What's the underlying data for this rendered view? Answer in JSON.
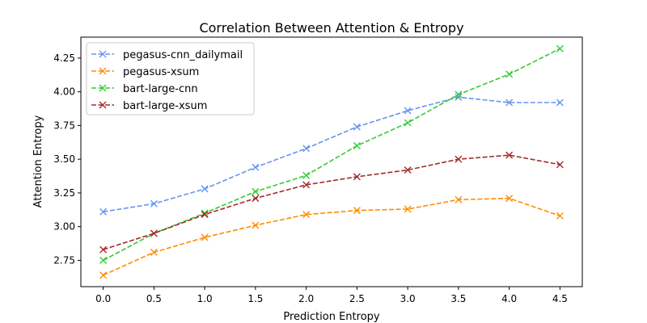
{
  "chart_data": {
    "type": "line",
    "title": "Correlation Between Attention & Entropy",
    "xlabel": "Prediction Entropy",
    "ylabel": "Attention Entropy",
    "x": [
      0.0,
      0.5,
      1.0,
      1.5,
      2.0,
      2.5,
      3.0,
      3.5,
      4.0,
      4.5
    ],
    "xlim": [
      -0.22,
      4.72
    ],
    "ylim": [
      2.555,
      4.405
    ],
    "xticks": [
      0.0,
      0.5,
      1.0,
      1.5,
      2.0,
      2.5,
      3.0,
      3.5,
      4.0,
      4.5
    ],
    "xtick_labels": [
      "0.0",
      "0.5",
      "1.0",
      "1.5",
      "2.0",
      "2.5",
      "3.0",
      "3.5",
      "4.0",
      "4.5"
    ],
    "yticks": [
      2.75,
      3.0,
      3.25,
      3.5,
      3.75,
      4.0,
      4.25
    ],
    "ytick_labels": [
      "2.75",
      "3.00",
      "3.25",
      "3.50",
      "3.75",
      "4.00",
      "4.25"
    ],
    "grid": false,
    "legend_position": "top-left",
    "series": [
      {
        "name": "pegasus-cnn_dailymail",
        "color": "#6495ED",
        "marker": "x",
        "linestyle": "dashed",
        "values": [
          3.11,
          3.17,
          3.28,
          3.44,
          3.58,
          3.74,
          3.86,
          3.96,
          3.92,
          3.92
        ]
      },
      {
        "name": "pegasus-xsum",
        "color": "#FF8C00",
        "marker": "x",
        "linestyle": "dashed",
        "values": [
          2.64,
          2.81,
          2.92,
          3.01,
          3.09,
          3.12,
          3.13,
          3.2,
          3.21,
          3.08
        ]
      },
      {
        "name": "bart-large-cnn",
        "color": "#32CD32",
        "marker": "x",
        "linestyle": "dashed",
        "values": [
          2.75,
          2.95,
          3.1,
          3.26,
          3.38,
          3.6,
          3.77,
          3.98,
          4.13,
          4.32
        ]
      },
      {
        "name": "bart-large-xsum",
        "color": "#A52A2A",
        "marker": "x",
        "linestyle": "dashed",
        "values": [
          2.83,
          2.95,
          3.09,
          3.21,
          3.31,
          3.37,
          3.42,
          3.5,
          3.53,
          3.46
        ]
      }
    ]
  }
}
